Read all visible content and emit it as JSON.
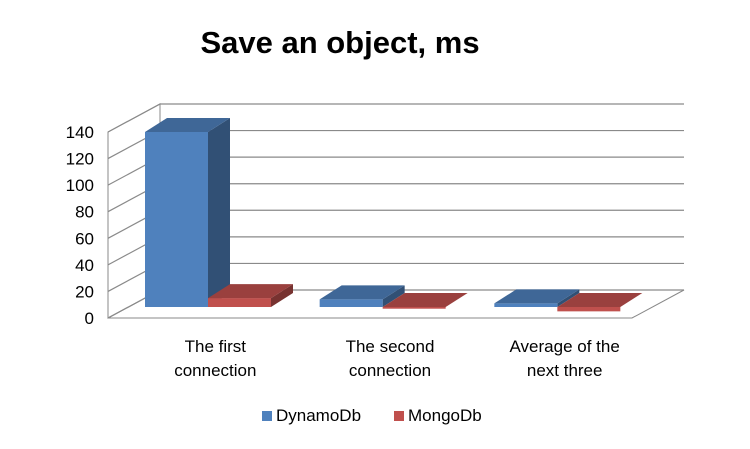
{
  "chart_data": {
    "type": "bar",
    "style": "3d-clustered-column",
    "title": "Save an object, ms",
    "categories": [
      [
        "The first",
        "connection"
      ],
      [
        "The second",
        "connection"
      ],
      [
        "Average of the",
        "next three"
      ]
    ],
    "series": [
      {
        "name": "DynamoDb",
        "values": [
          140,
          14,
          11
        ],
        "color": "#4F81BD"
      },
      {
        "name": "MongoDb",
        "values": [
          15,
          7,
          5
        ],
        "color": "#C0504D"
      }
    ],
    "ylim": [
      0,
      140
    ],
    "yticks": [
      0,
      20,
      40,
      60,
      80,
      100,
      120,
      140
    ],
    "grid": true,
    "legend": "bottom"
  }
}
